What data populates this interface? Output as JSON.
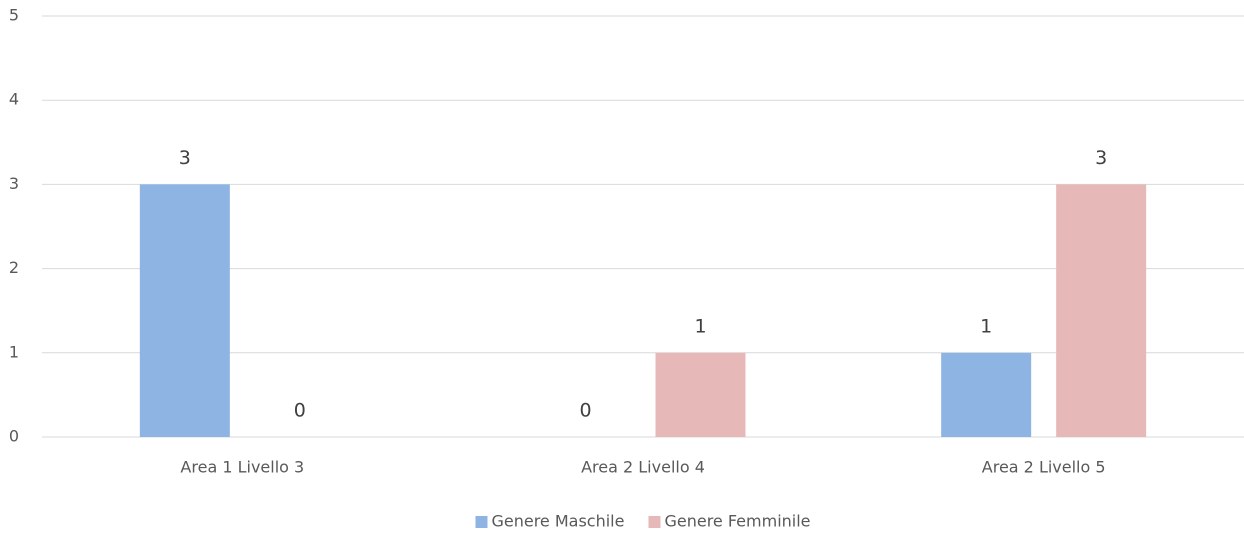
{
  "chart_data": {
    "type": "bar",
    "categories": [
      "Area 1 Livello 3",
      "Area 2 Livello 4",
      "Area 2 Livello 5"
    ],
    "series": [
      {
        "name": "Genere Maschile",
        "color": "#8eb4e3",
        "values": [
          3,
          0,
          1
        ]
      },
      {
        "name": "Genere Femminile",
        "color": "#e6b9b8",
        "values": [
          0,
          1,
          3
        ]
      }
    ],
    "ylim": [
      0,
      5
    ],
    "yticks": [
      0,
      1,
      2,
      3,
      4,
      5
    ],
    "grid": true,
    "legend": "bottom"
  }
}
